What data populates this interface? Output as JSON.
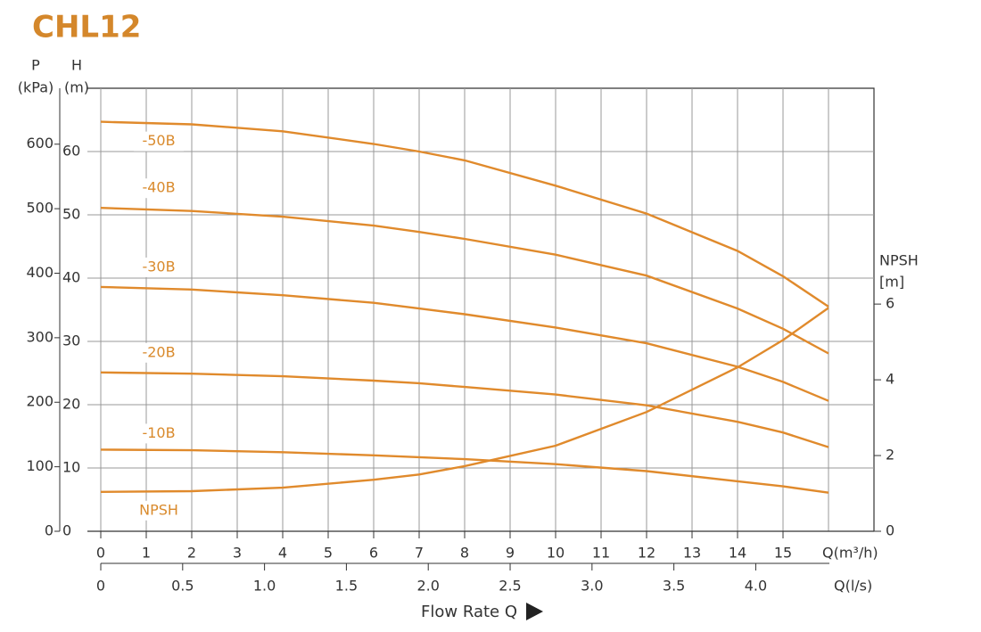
{
  "chart_data": {
    "type": "line",
    "title": "CHL12",
    "x": [
      0,
      2,
      4,
      6,
      7,
      8,
      10,
      12,
      14,
      15,
      16
    ],
    "xlim": [
      0,
      17
    ],
    "xticks": [
      0,
      1,
      2,
      3,
      4,
      5,
      6,
      7,
      8,
      9,
      10,
      11,
      12,
      13,
      14,
      15
    ],
    "x_label": "Q(m³/h)",
    "x2lim": [
      0,
      4.722
    ],
    "x2ticks": [
      0,
      0.5,
      {
        "value": 1,
        "label": "1.0"
      },
      1.5,
      {
        "value": 2,
        "label": "2.0"
      },
      2.5,
      {
        "value": 3,
        "label": "3.0"
      },
      3.5,
      {
        "value": 4,
        "label": "4.0"
      }
    ],
    "x2_label": "Q(l/s)",
    "axis_title": "Flow Rate Q",
    "ylim": [
      0,
      70
    ],
    "yticks": [
      0,
      10,
      20,
      30,
      40,
      50,
      60
    ],
    "y_label": [
      "H",
      "(m)"
    ],
    "plim": [
      0,
      686.7
    ],
    "pticks": [
      0,
      100,
      200,
      300,
      400,
      500,
      600
    ],
    "p_label": [
      "P",
      "(kPa)"
    ],
    "y2lim": [
      0,
      11.7
    ],
    "y2ticks": [
      0,
      2,
      4,
      6
    ],
    "y2_label": [
      "NPSH",
      "[m]"
    ],
    "grid": true,
    "series": [
      {
        "name": "-50B",
        "color": "#e08a2c",
        "values": [
          64.7,
          64.3,
          63.2,
          61.2,
          60,
          58.6,
          54.6,
          50.2,
          44.3,
          40.3,
          35.5
        ]
      },
      {
        "name": "-40B",
        "color": "#e08a2c",
        "values": [
          51.1,
          50.6,
          49.7,
          48.3,
          47.3,
          46.2,
          43.7,
          40.4,
          35.2,
          32.0,
          28.1
        ]
      },
      {
        "name": "-30B",
        "color": "#e08a2c",
        "values": [
          38.6,
          38.2,
          37.3,
          36.1,
          35.2,
          34.3,
          32.2,
          29.7,
          26.0,
          23.6,
          20.6
        ]
      },
      {
        "name": "-20B",
        "color": "#e08a2c",
        "values": [
          25.1,
          24.9,
          24.5,
          23.8,
          23.4,
          22.8,
          21.6,
          19.9,
          17.3,
          15.6,
          13.3
        ]
      },
      {
        "name": "-10B",
        "color": "#e08a2c",
        "values": [
          12.9,
          12.8,
          12.5,
          12.0,
          11.7,
          11.4,
          10.6,
          9.5,
          7.9,
          7.1,
          6.1
        ]
      },
      {
        "name": "NPSH",
        "color": "#e08a2c",
        "axis": "y2",
        "values": [
          1.04,
          1.06,
          1.15,
          1.36,
          1.5,
          1.72,
          2.26,
          3.15,
          4.33,
          5.05,
          5.9
        ]
      }
    ]
  }
}
